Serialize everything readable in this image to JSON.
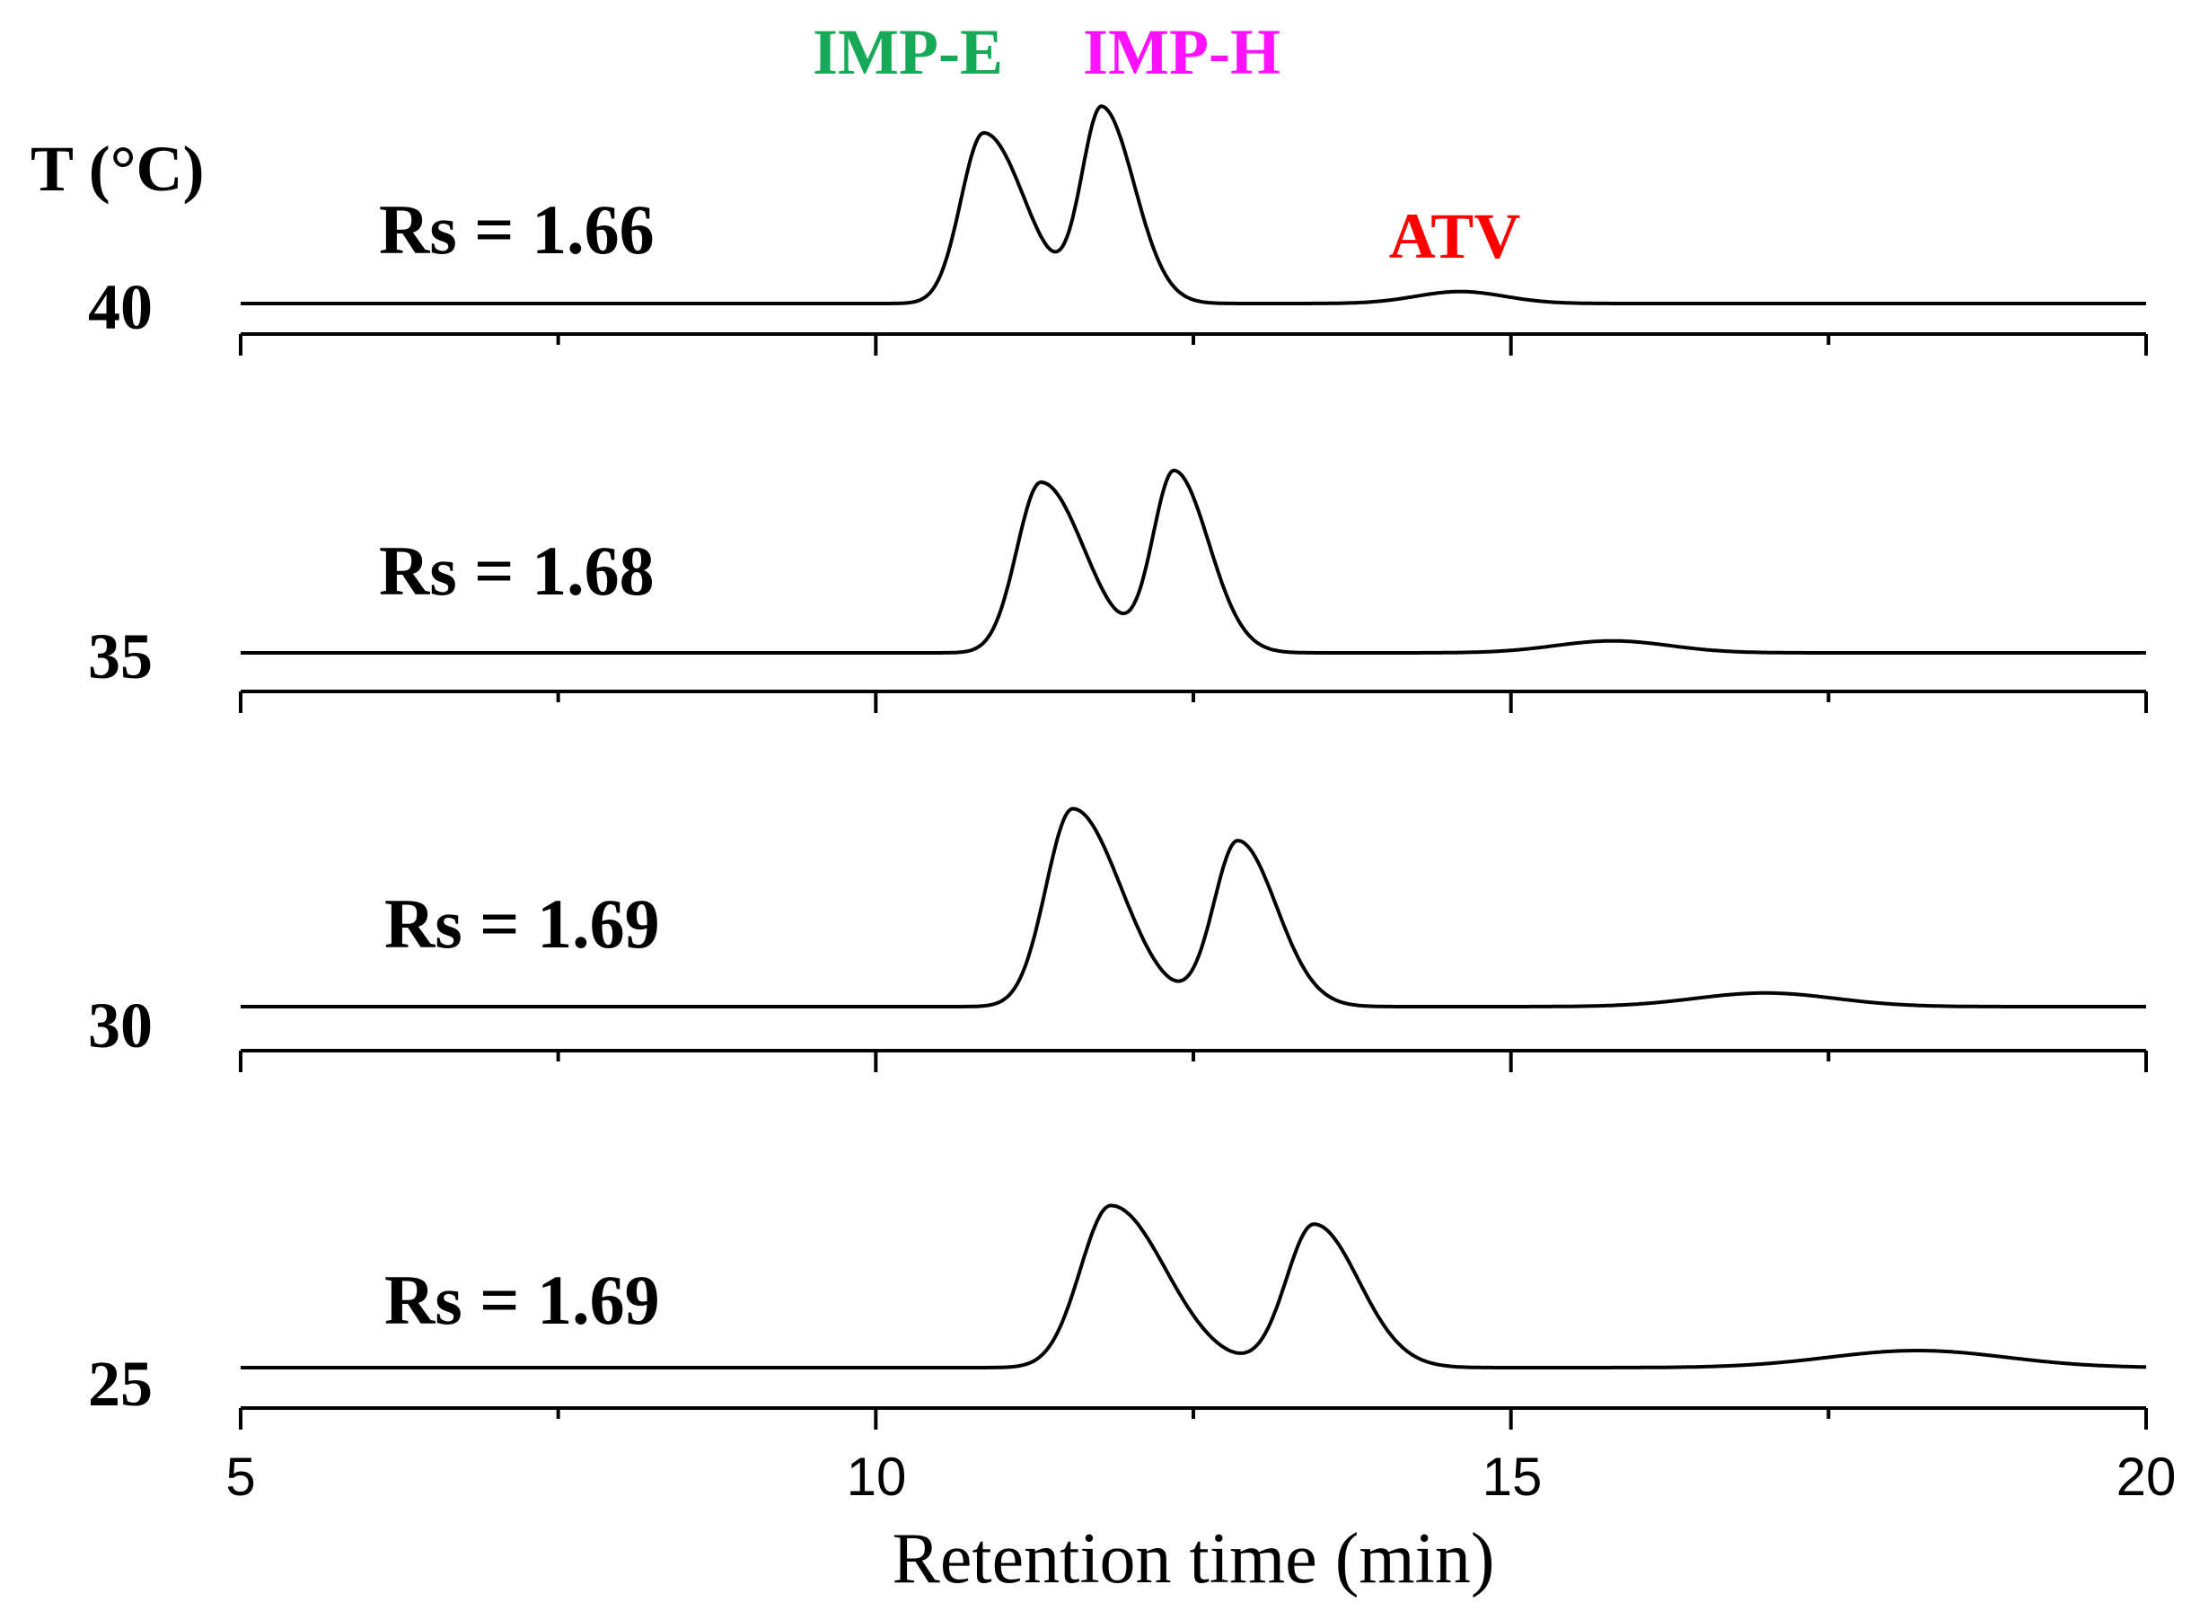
{
  "chart_data": {
    "type": "line",
    "title": "",
    "xlabel": "Retention time (min)",
    "ylabel": "T (°C)",
    "xlim": [
      5,
      20
    ],
    "x_ticks": [
      5,
      10,
      15,
      20
    ],
    "x_tick_labels": [
      "5",
      "10",
      "15",
      "20"
    ],
    "minor_tick_step": 2.5,
    "grid": false,
    "peak_labels": [
      {
        "text": "IMP-E",
        "color": "#16a957"
      },
      {
        "text": "IMP-H",
        "color": "#ff11ff"
      },
      {
        "text": "ATV",
        "color": "#ff0000"
      }
    ],
    "series": [
      {
        "name": "40",
        "resolution_label": "Rs = 1.66",
        "peaks": [
          {
            "component": "IMP-E",
            "rt": 10.85,
            "height": 1.0,
            "sigma": 0.18,
            "tailing": 1.8
          },
          {
            "component": "IMP-H",
            "rt": 11.78,
            "height": 1.14,
            "sigma": 0.16,
            "tailing": 1.6
          },
          {
            "component": "ATV",
            "rt": 14.6,
            "height": 0.07,
            "sigma": 0.35,
            "tailing": 1.0
          }
        ]
      },
      {
        "name": "35",
        "resolution_label": "Rs = 1.68",
        "peaks": [
          {
            "component": "IMP-E",
            "rt": 11.3,
            "height": 1.0,
            "sigma": 0.19,
            "tailing": 1.8
          },
          {
            "component": "IMP-H",
            "rt": 12.35,
            "height": 1.06,
            "sigma": 0.17,
            "tailing": 1.6
          },
          {
            "component": "ATV",
            "rt": 15.8,
            "height": 0.07,
            "sigma": 0.45,
            "tailing": 1.0
          }
        ]
      },
      {
        "name": "30",
        "resolution_label": "Rs = 1.69",
        "peaks": [
          {
            "component": "IMP-E",
            "rt": 11.55,
            "height": 1.16,
            "sigma": 0.21,
            "tailing": 1.8
          },
          {
            "component": "IMP-H",
            "rt": 12.85,
            "height": 0.97,
            "sigma": 0.19,
            "tailing": 1.6
          },
          {
            "component": "ATV",
            "rt": 17.0,
            "height": 0.08,
            "sigma": 0.55,
            "tailing": 1.0
          }
        ]
      },
      {
        "name": "25",
        "resolution_label": "Rs = 1.69",
        "peaks": [
          {
            "component": "IMP-E",
            "rt": 11.85,
            "height": 0.95,
            "sigma": 0.24,
            "tailing": 1.8
          },
          {
            "component": "IMP-H",
            "rt": 13.45,
            "height": 0.84,
            "sigma": 0.22,
            "tailing": 1.6
          },
          {
            "component": "ATV",
            "rt": 18.2,
            "height": 0.1,
            "sigma": 0.7,
            "tailing": 1.0
          }
        ]
      }
    ]
  }
}
